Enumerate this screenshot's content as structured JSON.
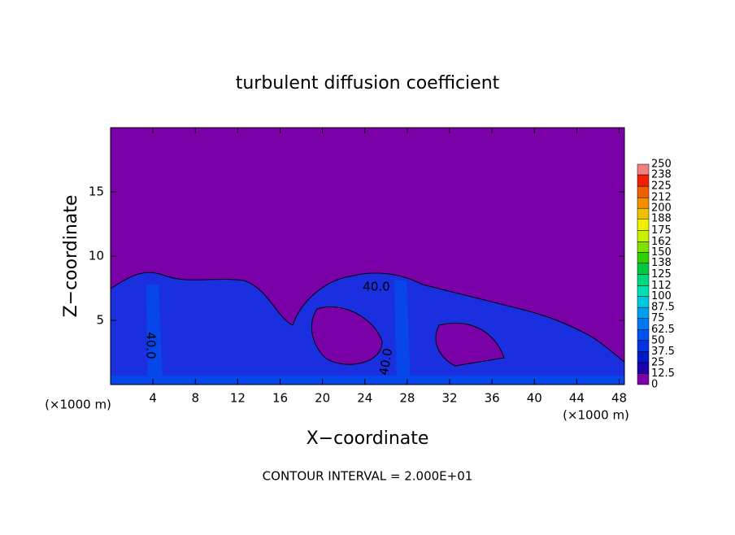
{
  "chart_data": {
    "type": "contour",
    "title": "turbulent diffusion coefficient",
    "x_label": "X−coordinate",
    "y_label": "Z−coordinate",
    "x_unit": "(×1000 m)",
    "y_unit": "(×1000 m)",
    "footer": "CONTOUR INTERVAL = 2.000E+01",
    "xlim": [
      0,
      48.5
    ],
    "xticks": [
      4,
      8,
      12,
      16,
      20,
      24,
      28,
      32,
      36,
      40,
      44,
      48
    ],
    "ylim": [
      0,
      20
    ],
    "yticks": [
      5,
      10,
      15
    ],
    "contour_labels": [
      "40.0",
      "40.0",
      "40.0"
    ],
    "colorbar": {
      "levels": [
        0,
        12.5,
        25,
        37.5,
        50,
        62.5,
        75,
        87.5,
        100,
        112,
        125,
        138,
        150,
        162,
        175,
        188,
        200,
        212,
        225,
        238,
        250
      ],
      "colors": [
        "#7a00a8",
        "#1c00b0",
        "#0018c8",
        "#0034e0",
        "#0050f0",
        "#0078f0",
        "#00a0f0",
        "#00c8e0",
        "#00e0b0",
        "#00d880",
        "#00c840",
        "#30d000",
        "#80e000",
        "#c8f000",
        "#f0f000",
        "#f0c000",
        "#f09000",
        "#f06000",
        "#f02000",
        "#f08080"
      ]
    }
  }
}
